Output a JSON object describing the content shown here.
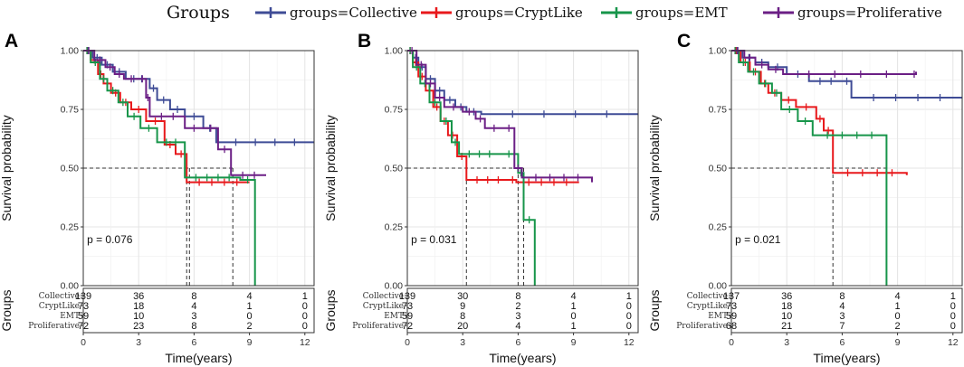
{
  "legend": {
    "title": "Groups",
    "entries": [
      {
        "label": "groups=Collective",
        "color": "#3f4c96"
      },
      {
        "label": "groups=CryptLike",
        "color": "#e8191c"
      },
      {
        "label": "groups=EMT",
        "color": "#17954a"
      },
      {
        "label": "groups=Proliferative",
        "color": "#6b1f85"
      }
    ]
  },
  "chart_data": [
    {
      "type": "line",
      "panel_label": "A",
      "title": "",
      "xlabel": "Time(years)",
      "ylabel": "Survival probability",
      "risk_ylabel": "Groups",
      "xlim": [
        0,
        12.5
      ],
      "ylim": [
        0,
        1
      ],
      "x_ticks": [
        0,
        3,
        6,
        9,
        12
      ],
      "y_ticks": [
        0.0,
        0.25,
        0.5,
        0.75,
        1.0
      ],
      "y_tick_labels": [
        "0.00",
        "0.25",
        "0.50",
        "0.75",
        "1.00"
      ],
      "p_value": "p = 0.076",
      "median_lines": [
        5.6,
        5.75,
        8.1
      ],
      "series": [
        {
          "name": "groups=Collective",
          "color": "#3f4c96",
          "steps": [
            [
              0,
              1
            ],
            [
              0.5,
              0.97
            ],
            [
              1.0,
              0.94
            ],
            [
              1.6,
              0.91
            ],
            [
              2.3,
              0.88
            ],
            [
              3.6,
              0.84
            ],
            [
              4.0,
              0.79
            ],
            [
              4.7,
              0.75
            ],
            [
              5.5,
              0.72
            ],
            [
              6.5,
              0.67
            ],
            [
              7.2,
              0.61
            ],
            [
              12.5,
              0.61
            ]
          ]
        },
        {
          "name": "groups=CryptLike",
          "color": "#e8191c",
          "steps": [
            [
              0,
              1
            ],
            [
              0.4,
              0.96
            ],
            [
              0.8,
              0.9
            ],
            [
              1.1,
              0.86
            ],
            [
              1.5,
              0.82
            ],
            [
              2.0,
              0.78
            ],
            [
              2.6,
              0.75
            ],
            [
              3.4,
              0.7
            ],
            [
              4.4,
              0.6
            ],
            [
              5.0,
              0.56
            ],
            [
              5.6,
              0.44
            ],
            [
              9.0,
              0.44
            ]
          ]
        },
        {
          "name": "groups=EMT",
          "color": "#17954a",
          "steps": [
            [
              0,
              1
            ],
            [
              0.4,
              0.95
            ],
            [
              0.9,
              0.88
            ],
            [
              1.3,
              0.83
            ],
            [
              1.9,
              0.78
            ],
            [
              2.4,
              0.72
            ],
            [
              3.1,
              0.67
            ],
            [
              4.0,
              0.61
            ],
            [
              5.5,
              0.46
            ],
            [
              8.5,
              0.46
            ],
            [
              8.5,
              0.45
            ],
            [
              9.3,
              0.45
            ],
            [
              9.3,
              0.0
            ]
          ]
        },
        {
          "name": "groups=Proliferative",
          "color": "#6b1f85",
          "steps": [
            [
              0,
              1
            ],
            [
              0.6,
              0.96
            ],
            [
              1.2,
              0.93
            ],
            [
              1.7,
              0.9
            ],
            [
              2.2,
              0.88
            ],
            [
              3.0,
              0.88
            ],
            [
              3.4,
              0.8
            ],
            [
              3.6,
              0.72
            ],
            [
              5.5,
              0.67
            ],
            [
              6.5,
              0.67
            ],
            [
              7.3,
              0.58
            ],
            [
              8.0,
              0.47
            ],
            [
              9.9,
              0.47
            ]
          ]
        }
      ],
      "risk_table": {
        "rows": [
          {
            "group": "Collective",
            "counts": [
              "139",
              "36",
              "8",
              "4",
              "1"
            ]
          },
          {
            "group": "CryptLike",
            "counts": [
              "73",
              "18",
              "4",
              "1",
              "0"
            ]
          },
          {
            "group": "EMT",
            "counts": [
              "59",
              "10",
              "3",
              "0",
              "0"
            ]
          },
          {
            "group": "Proliferative",
            "counts": [
              "72",
              "23",
              "8",
              "2",
              "0"
            ]
          }
        ]
      }
    },
    {
      "type": "line",
      "panel_label": "B",
      "title": "",
      "xlabel": "Time(years)",
      "ylabel": "Survival probability",
      "risk_ylabel": "Groups",
      "xlim": [
        0,
        12.5
      ],
      "ylim": [
        0,
        1
      ],
      "x_ticks": [
        0,
        3,
        6,
        9,
        12
      ],
      "y_ticks": [
        0.0,
        0.25,
        0.5,
        0.75,
        1.0
      ],
      "y_tick_labels": [
        "0.00",
        "0.25",
        "0.50",
        "0.75",
        "1.00"
      ],
      "p_value": "p = 0.031",
      "median_lines": [
        3.2,
        6.0,
        6.3
      ],
      "series": [
        {
          "name": "groups=Collective",
          "color": "#3f4c96",
          "steps": [
            [
              0,
              1
            ],
            [
              0.3,
              0.97
            ],
            [
              0.6,
              0.93
            ],
            [
              1.0,
              0.88
            ],
            [
              1.5,
              0.83
            ],
            [
              2.0,
              0.79
            ],
            [
              2.6,
              0.76
            ],
            [
              3.2,
              0.74
            ],
            [
              4.0,
              0.73
            ],
            [
              12.5,
              0.73
            ]
          ]
        },
        {
          "name": "groups=CryptLike",
          "color": "#e8191c",
          "steps": [
            [
              0,
              1
            ],
            [
              0.3,
              0.95
            ],
            [
              0.6,
              0.89
            ],
            [
              1.0,
              0.83
            ],
            [
              1.4,
              0.76
            ],
            [
              1.8,
              0.7
            ],
            [
              2.2,
              0.64
            ],
            [
              2.7,
              0.55
            ],
            [
              3.2,
              0.45
            ],
            [
              5.5,
              0.45
            ],
            [
              5.9,
              0.44
            ],
            [
              9.3,
              0.44
            ]
          ]
        },
        {
          "name": "groups=EMT",
          "color": "#17954a",
          "steps": [
            [
              0,
              1
            ],
            [
              0.3,
              0.93
            ],
            [
              0.7,
              0.86
            ],
            [
              1.2,
              0.78
            ],
            [
              1.8,
              0.7
            ],
            [
              2.4,
              0.61
            ],
            [
              2.8,
              0.56
            ],
            [
              5.0,
              0.56
            ],
            [
              6.0,
              0.48
            ],
            [
              6.3,
              0.28
            ],
            [
              6.9,
              0.28
            ],
            [
              6.9,
              0.0
            ]
          ]
        },
        {
          "name": "groups=Proliferative",
          "color": "#6b1f85",
          "steps": [
            [
              0,
              1
            ],
            [
              0.5,
              0.94
            ],
            [
              1.0,
              0.86
            ],
            [
              1.5,
              0.8
            ],
            [
              2.0,
              0.76
            ],
            [
              3.0,
              0.74
            ],
            [
              3.7,
              0.71
            ],
            [
              4.2,
              0.67
            ],
            [
              5.2,
              0.67
            ],
            [
              5.8,
              0.5
            ],
            [
              6.2,
              0.46
            ],
            [
              10.0,
              0.44
            ]
          ]
        }
      ],
      "risk_table": {
        "rows": [
          {
            "group": "Collective",
            "counts": [
              "139",
              "30",
              "8",
              "4",
              "1"
            ]
          },
          {
            "group": "CryptLike",
            "counts": [
              "73",
              "9",
              "2",
              "1",
              "0"
            ]
          },
          {
            "group": "EMT",
            "counts": [
              "59",
              "8",
              "3",
              "0",
              "0"
            ]
          },
          {
            "group": "Proliferative",
            "counts": [
              "72",
              "20",
              "4",
              "1",
              "0"
            ]
          }
        ]
      }
    },
    {
      "type": "line",
      "panel_label": "C",
      "title": "",
      "xlabel": "Time(years)",
      "ylabel": "Survival probability",
      "risk_ylabel": "Groups",
      "xlim": [
        0,
        12.5
      ],
      "ylim": [
        0,
        1
      ],
      "x_ticks": [
        0,
        3,
        6,
        9,
        12
      ],
      "y_ticks": [
        0.0,
        0.25,
        0.5,
        0.75,
        1.0
      ],
      "y_tick_labels": [
        "0.00",
        "0.25",
        "0.50",
        "0.75",
        "1.00"
      ],
      "p_value": "p = 0.021",
      "median_lines": [
        5.5,
        8.4
      ],
      "series": [
        {
          "name": "groups=Collective",
          "color": "#3f4c96",
          "steps": [
            [
              0,
              1
            ],
            [
              0.6,
              0.97
            ],
            [
              1.3,
              0.95
            ],
            [
              2.0,
              0.93
            ],
            [
              3.0,
              0.9
            ],
            [
              4.2,
              0.87
            ],
            [
              6.0,
              0.87
            ],
            [
              6.5,
              0.8
            ],
            [
              12.5,
              0.8
            ]
          ]
        },
        {
          "name": "groups=CryptLike",
          "color": "#e8191c",
          "steps": [
            [
              0,
              1
            ],
            [
              0.5,
              0.95
            ],
            [
              1.0,
              0.91
            ],
            [
              1.6,
              0.86
            ],
            [
              2.0,
              0.82
            ],
            [
              2.7,
              0.79
            ],
            [
              3.5,
              0.76
            ],
            [
              4.6,
              0.71
            ],
            [
              5.0,
              0.66
            ],
            [
              5.5,
              0.48
            ],
            [
              9.5,
              0.47
            ]
          ]
        },
        {
          "name": "groups=EMT",
          "color": "#17954a",
          "steps": [
            [
              0,
              1
            ],
            [
              0.4,
              0.95
            ],
            [
              0.9,
              0.91
            ],
            [
              1.5,
              0.86
            ],
            [
              2.2,
              0.82
            ],
            [
              2.7,
              0.75
            ],
            [
              3.6,
              0.7
            ],
            [
              4.4,
              0.64
            ],
            [
              8.4,
              0.64
            ],
            [
              8.4,
              0.0
            ]
          ]
        },
        {
          "name": "groups=Proliferative",
          "color": "#6b1f85",
          "steps": [
            [
              0,
              1
            ],
            [
              0.7,
              0.97
            ],
            [
              1.3,
              0.94
            ],
            [
              2.0,
              0.92
            ],
            [
              2.8,
              0.9
            ],
            [
              9.8,
              0.9
            ],
            [
              10.0,
              0.91
            ]
          ]
        }
      ],
      "risk_table": {
        "rows": [
          {
            "group": "Collective",
            "counts": [
              "137",
              "36",
              "8",
              "4",
              "1"
            ]
          },
          {
            "group": "CryptLike",
            "counts": [
              "73",
              "18",
              "4",
              "1",
              "0"
            ]
          },
          {
            "group": "EMT",
            "counts": [
              "59",
              "10",
              "3",
              "0",
              "0"
            ]
          },
          {
            "group": "Proliferative",
            "counts": [
              "68",
              "21",
              "7",
              "2",
              "0"
            ]
          }
        ]
      }
    }
  ]
}
